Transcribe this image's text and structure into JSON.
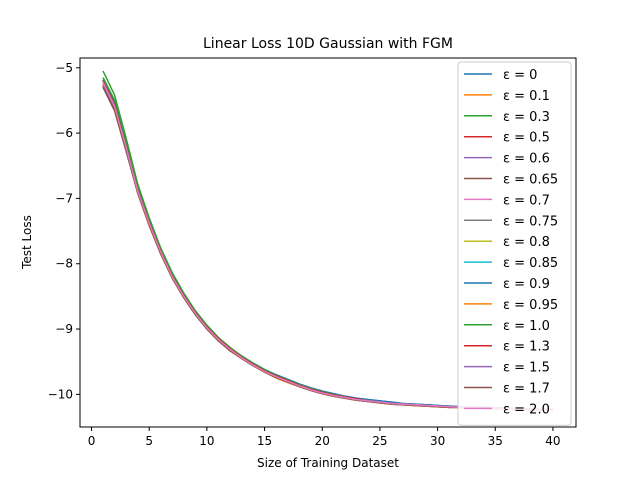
{
  "chart_data": {
    "type": "line",
    "title": "Linear Loss 10D Gaussian with FGM",
    "xlabel": "Size of Training Dataset",
    "ylabel": "Test Loss",
    "xlim": [
      -1,
      42
    ],
    "ylim": [
      -10.5,
      -4.85
    ],
    "xticks": [
      0,
      5,
      10,
      15,
      20,
      25,
      30,
      35,
      40
    ],
    "yticks": [
      -10,
      -9,
      -8,
      -7,
      -6,
      -5
    ],
    "xtick_labels": [
      "0",
      "5",
      "10",
      "15",
      "20",
      "25",
      "30",
      "35",
      "40"
    ],
    "ytick_labels": [
      "−10",
      "−9",
      "−8",
      "−7",
      "−6",
      "−5"
    ],
    "grid": false,
    "legend_position": "upper right",
    "x": [
      1,
      2,
      3,
      4,
      5,
      6,
      7,
      8,
      9,
      10,
      11,
      12,
      13,
      14,
      15,
      16,
      17,
      18,
      19,
      20,
      21,
      22,
      23,
      24,
      25,
      26,
      27,
      28,
      29,
      30,
      31,
      32,
      33,
      34,
      35,
      36,
      37,
      38,
      39,
      40
    ],
    "series": [
      {
        "name": "ε = 0",
        "color": "#1f77b4",
        "values": [
          -5.18,
          -5.55,
          -6.2,
          -6.85,
          -7.35,
          -7.8,
          -8.18,
          -8.48,
          -8.74,
          -8.96,
          -9.15,
          -9.3,
          -9.42,
          -9.52,
          -9.62,
          -9.7,
          -9.77,
          -9.84,
          -9.9,
          -9.95,
          -9.99,
          -10.03,
          -10.06,
          -10.08,
          -10.1,
          -10.12,
          -10.14,
          -10.15,
          -10.16,
          -10.17,
          -10.18,
          -10.19,
          -10.2,
          -10.2,
          -10.21,
          -10.21,
          -10.22,
          -10.22,
          -10.23,
          -10.23
        ]
      },
      {
        "name": "ε = 0.1",
        "color": "#ff7f0e",
        "values": [
          -5.25,
          -5.62,
          -6.25,
          -6.92,
          -7.42,
          -7.85,
          -8.22,
          -8.52,
          -8.78,
          -9.0,
          -9.18,
          -9.33,
          -9.45,
          -9.56,
          -9.66,
          -9.75,
          -9.82,
          -9.88,
          -9.94,
          -9.99,
          -10.03,
          -10.06,
          -10.09,
          -10.11,
          -10.13,
          -10.15,
          -10.16,
          -10.17,
          -10.18,
          -10.19,
          -10.2,
          -10.2,
          -10.21,
          -10.21,
          -10.22,
          -10.22,
          -10.23,
          -10.23,
          -10.23,
          -10.24
        ]
      },
      {
        "name": "ε = 0.3",
        "color": "#2ca02c",
        "values": [
          -5.15,
          -5.5,
          -6.15,
          -6.82,
          -7.33,
          -7.78,
          -8.16,
          -8.47,
          -8.73,
          -8.95,
          -9.14,
          -9.29,
          -9.42,
          -9.53,
          -9.63,
          -9.72,
          -9.79,
          -9.86,
          -9.92,
          -9.97,
          -10.01,
          -10.04,
          -10.07,
          -10.1,
          -10.12,
          -10.14,
          -10.15,
          -10.16,
          -10.17,
          -10.18,
          -10.19,
          -10.2,
          -10.2,
          -10.21,
          -10.21,
          -10.22,
          -10.22,
          -10.23,
          -10.23,
          -10.23
        ]
      },
      {
        "name": "ε = 0.5",
        "color": "#d62728",
        "values": [
          -5.2,
          -5.58,
          -6.22,
          -6.88,
          -7.38,
          -7.82,
          -8.2,
          -8.5,
          -8.76,
          -8.98,
          -9.16,
          -9.31,
          -9.43,
          -9.54,
          -9.64,
          -9.73,
          -9.8,
          -9.87,
          -9.93,
          -9.98,
          -10.02,
          -10.05,
          -10.08,
          -10.1,
          -10.12,
          -10.14,
          -10.15,
          -10.16,
          -10.17,
          -10.18,
          -10.19,
          -10.2,
          -10.2,
          -10.21,
          -10.21,
          -10.22,
          -10.22,
          -10.23,
          -10.23,
          -10.23
        ]
      },
      {
        "name": "ε = 0.6",
        "color": "#9467bd",
        "values": [
          -5.28,
          -5.64,
          -6.26,
          -6.9,
          -7.4,
          -7.84,
          -8.21,
          -8.51,
          -8.77,
          -8.99,
          -9.17,
          -9.32,
          -9.44,
          -9.55,
          -9.65,
          -9.74,
          -9.81,
          -9.87,
          -9.93,
          -9.98,
          -10.02,
          -10.05,
          -10.08,
          -10.1,
          -10.12,
          -10.14,
          -10.15,
          -10.16,
          -10.17,
          -10.18,
          -10.19,
          -10.2,
          -10.2,
          -10.21,
          -10.21,
          -10.22,
          -10.22,
          -10.23,
          -10.23,
          -10.23
        ]
      },
      {
        "name": "ε = 0.65",
        "color": "#8c564b",
        "values": [
          -5.3,
          -5.66,
          -6.28,
          -6.91,
          -7.41,
          -7.85,
          -8.22,
          -8.52,
          -8.78,
          -9.0,
          -9.18,
          -9.33,
          -9.45,
          -9.56,
          -9.66,
          -9.74,
          -9.81,
          -9.88,
          -9.94,
          -9.99,
          -10.03,
          -10.06,
          -10.09,
          -10.11,
          -10.13,
          -10.15,
          -10.16,
          -10.17,
          -10.18,
          -10.19,
          -10.2,
          -10.2,
          -10.21,
          -10.21,
          -10.22,
          -10.22,
          -10.23,
          -10.23,
          -10.23,
          -10.24
        ]
      },
      {
        "name": "ε = 0.7",
        "color": "#e377c2",
        "values": [
          -5.22,
          -5.6,
          -6.23,
          -6.89,
          -7.39,
          -7.83,
          -8.2,
          -8.5,
          -8.76,
          -8.98,
          -9.16,
          -9.31,
          -9.44,
          -9.55,
          -9.65,
          -9.73,
          -9.8,
          -9.87,
          -9.93,
          -9.98,
          -10.02,
          -10.05,
          -10.08,
          -10.1,
          -10.12,
          -10.14,
          -10.15,
          -10.16,
          -10.17,
          -10.18,
          -10.19,
          -10.2,
          -10.2,
          -10.21,
          -10.21,
          -10.22,
          -10.22,
          -10.23,
          -10.23,
          -10.23
        ]
      },
      {
        "name": "ε = 0.75",
        "color": "#7f7f7f",
        "values": [
          -5.27,
          -5.63,
          -6.25,
          -6.9,
          -7.4,
          -7.84,
          -8.21,
          -8.51,
          -8.77,
          -8.99,
          -9.17,
          -9.32,
          -9.44,
          -9.55,
          -9.65,
          -9.74,
          -9.81,
          -9.87,
          -9.93,
          -9.98,
          -10.02,
          -10.05,
          -10.08,
          -10.1,
          -10.12,
          -10.14,
          -10.15,
          -10.16,
          -10.17,
          -10.18,
          -10.19,
          -10.2,
          -10.2,
          -10.21,
          -10.21,
          -10.22,
          -10.22,
          -10.23,
          -10.23,
          -10.23
        ]
      },
      {
        "name": "ε = 0.8",
        "color": "#bcbd22",
        "values": [
          -5.21,
          -5.59,
          -6.22,
          -6.88,
          -7.38,
          -7.82,
          -8.2,
          -8.5,
          -8.76,
          -8.98,
          -9.16,
          -9.31,
          -9.43,
          -9.54,
          -9.64,
          -9.73,
          -9.8,
          -9.87,
          -9.93,
          -9.98,
          -10.02,
          -10.05,
          -10.08,
          -10.1,
          -10.12,
          -10.14,
          -10.15,
          -10.16,
          -10.17,
          -10.18,
          -10.19,
          -10.2,
          -10.2,
          -10.21,
          -10.21,
          -10.22,
          -10.22,
          -10.23,
          -10.23,
          -10.23
        ]
      },
      {
        "name": "ε = 0.85",
        "color": "#17becf",
        "values": [
          -5.23,
          -5.6,
          -6.23,
          -6.89,
          -7.39,
          -7.83,
          -8.2,
          -8.5,
          -8.76,
          -8.98,
          -9.16,
          -9.31,
          -9.44,
          -9.55,
          -9.65,
          -9.73,
          -9.8,
          -9.87,
          -9.93,
          -9.98,
          -10.02,
          -10.05,
          -10.08,
          -10.1,
          -10.12,
          -10.14,
          -10.15,
          -10.16,
          -10.17,
          -10.18,
          -10.19,
          -10.2,
          -10.2,
          -10.21,
          -10.21,
          -10.22,
          -10.22,
          -10.23,
          -10.23,
          -10.23
        ]
      },
      {
        "name": "ε = 0.9",
        "color": "#1f77b4",
        "values": [
          -5.19,
          -5.56,
          -6.2,
          -6.86,
          -7.36,
          -7.8,
          -8.18,
          -8.48,
          -8.74,
          -8.96,
          -9.15,
          -9.3,
          -9.42,
          -9.53,
          -9.62,
          -9.7,
          -9.77,
          -9.84,
          -9.9,
          -9.95,
          -9.99,
          -10.03,
          -10.06,
          -10.08,
          -10.1,
          -10.12,
          -10.14,
          -10.15,
          -10.16,
          -10.17,
          -10.18,
          -10.19,
          -10.2,
          -10.2,
          -10.21,
          -10.21,
          -10.22,
          -10.22,
          -10.23,
          -10.23
        ]
      },
      {
        "name": "ε = 0.95",
        "color": "#ff7f0e",
        "values": [
          -5.24,
          -5.61,
          -6.24,
          -6.9,
          -7.4,
          -7.84,
          -8.21,
          -8.51,
          -8.77,
          -8.99,
          -9.17,
          -9.32,
          -9.44,
          -9.55,
          -9.65,
          -9.74,
          -9.81,
          -9.88,
          -9.94,
          -9.99,
          -10.03,
          -10.06,
          -10.09,
          -10.11,
          -10.13,
          -10.15,
          -10.16,
          -10.17,
          -10.18,
          -10.19,
          -10.2,
          -10.2,
          -10.21,
          -10.21,
          -10.22,
          -10.22,
          -10.23,
          -10.23,
          -10.23,
          -10.24
        ]
      },
      {
        "name": "ε = 1.0",
        "color": "#2ca02c",
        "values": [
          -5.05,
          -5.42,
          -6.08,
          -6.78,
          -7.3,
          -7.76,
          -8.14,
          -8.45,
          -8.72,
          -8.94,
          -9.13,
          -9.28,
          -9.41,
          -9.52,
          -9.62,
          -9.71,
          -9.78,
          -9.85,
          -9.91,
          -9.96,
          -10.0,
          -10.04,
          -10.07,
          -10.1,
          -10.12,
          -10.14,
          -10.15,
          -10.16,
          -10.17,
          -10.18,
          -10.19,
          -10.2,
          -10.2,
          -10.21,
          -10.21,
          -10.22,
          -10.22,
          -10.23,
          -10.23,
          -10.23
        ]
      },
      {
        "name": "ε = 1.3",
        "color": "#d62728",
        "values": [
          -5.2,
          -5.57,
          -6.21,
          -6.87,
          -7.37,
          -7.81,
          -8.19,
          -8.49,
          -8.75,
          -8.97,
          -9.15,
          -9.3,
          -9.43,
          -9.54,
          -9.64,
          -9.72,
          -9.79,
          -9.86,
          -9.92,
          -9.97,
          -10.01,
          -10.04,
          -10.07,
          -10.1,
          -10.12,
          -10.14,
          -10.15,
          -10.16,
          -10.17,
          -10.18,
          -10.19,
          -10.2,
          -10.2,
          -10.21,
          -10.21,
          -10.22,
          -10.22,
          -10.23,
          -10.23,
          -10.23
        ]
      },
      {
        "name": "ε = 1.5",
        "color": "#9467bd",
        "values": [
          -5.26,
          -5.62,
          -6.25,
          -6.9,
          -7.4,
          -7.84,
          -8.21,
          -8.51,
          -8.77,
          -8.99,
          -9.17,
          -9.32,
          -9.44,
          -9.55,
          -9.65,
          -9.74,
          -9.81,
          -9.87,
          -9.93,
          -9.98,
          -10.02,
          -10.05,
          -10.08,
          -10.1,
          -10.12,
          -10.14,
          -10.15,
          -10.16,
          -10.17,
          -10.18,
          -10.19,
          -10.2,
          -10.2,
          -10.21,
          -10.21,
          -10.22,
          -10.22,
          -10.23,
          -10.23,
          -10.23
        ]
      },
      {
        "name": "ε = 1.7",
        "color": "#8c564b",
        "values": [
          -5.29,
          -5.65,
          -6.27,
          -6.91,
          -7.41,
          -7.85,
          -8.22,
          -8.52,
          -8.78,
          -9.0,
          -9.18,
          -9.33,
          -9.45,
          -9.56,
          -9.66,
          -9.74,
          -9.81,
          -9.88,
          -9.94,
          -9.99,
          -10.03,
          -10.06,
          -10.09,
          -10.11,
          -10.13,
          -10.15,
          -10.16,
          -10.17,
          -10.18,
          -10.19,
          -10.2,
          -10.2,
          -10.21,
          -10.21,
          -10.22,
          -10.22,
          -10.23,
          -10.23,
          -10.23,
          -10.24
        ]
      },
      {
        "name": "ε = 2.0",
        "color": "#e377c2",
        "values": [
          -5.22,
          -5.59,
          -6.22,
          -6.88,
          -7.38,
          -7.82,
          -8.2,
          -8.5,
          -8.76,
          -8.98,
          -9.16,
          -9.31,
          -9.44,
          -9.55,
          -9.65,
          -9.73,
          -9.8,
          -9.87,
          -9.93,
          -9.98,
          -10.02,
          -10.05,
          -10.08,
          -10.1,
          -10.12,
          -10.14,
          -10.15,
          -10.16,
          -10.17,
          -10.18,
          -10.19,
          -10.2,
          -10.2,
          -10.21,
          -10.21,
          -10.22,
          -10.22,
          -10.23,
          -10.23,
          -10.23
        ]
      }
    ]
  }
}
